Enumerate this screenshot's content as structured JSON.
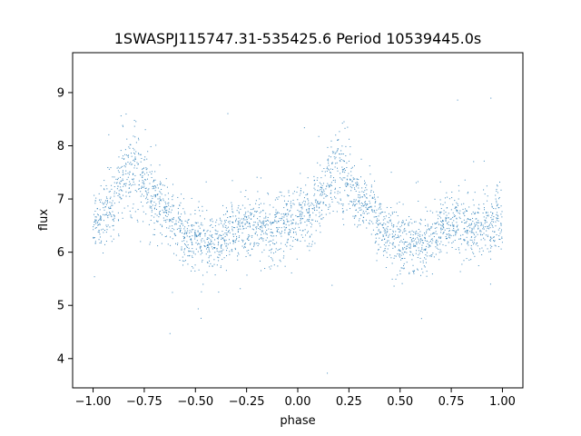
{
  "chart_data": {
    "type": "scatter",
    "title": "1SWASPJ115747.31-535425.6 Period 10539445.0s",
    "xlabel": "phase",
    "ylabel": "flux",
    "xlim": [
      -1.1,
      1.1
    ],
    "ylim": [
      3.45,
      9.75
    ],
    "x_ticks": [
      -1.0,
      -0.75,
      -0.5,
      -0.25,
      0.0,
      0.25,
      0.5,
      0.75,
      1.0
    ],
    "x_tick_labels": [
      "−1.00",
      "−0.75",
      "−0.50",
      "−0.25",
      "0.00",
      "0.25",
      "0.50",
      "0.75",
      "1.00"
    ],
    "y_ticks": [
      4,
      5,
      6,
      7,
      8,
      9
    ],
    "y_tick_labels": [
      "4",
      "5",
      "6",
      "7",
      "8",
      "9"
    ],
    "grid": false,
    "marker_color": "#1f77b4",
    "series": [
      {
        "x": [
          -1.0,
          -0.95,
          -0.9,
          -0.85,
          -0.8,
          -0.75,
          -0.7,
          -0.65,
          -0.6,
          -0.55,
          -0.5,
          -0.45,
          -0.4,
          -0.35,
          -0.3,
          -0.25,
          -0.2,
          -0.15,
          -0.1,
          -0.05,
          0.0,
          0.05,
          0.1,
          0.15,
          0.2,
          0.25,
          0.3,
          0.35,
          0.4,
          0.45,
          0.5,
          0.55,
          0.6,
          0.65,
          0.7,
          0.75,
          0.8,
          0.85,
          0.9,
          0.95,
          1.0
        ],
        "y": [
          6.6,
          6.7,
          6.9,
          7.4,
          7.6,
          7.3,
          7.0,
          6.8,
          6.5,
          6.3,
          6.2,
          6.2,
          6.1,
          6.3,
          6.4,
          6.5,
          6.5,
          6.4,
          6.5,
          6.6,
          6.6,
          6.7,
          6.9,
          7.4,
          7.6,
          7.3,
          7.0,
          6.8,
          6.5,
          6.3,
          6.2,
          6.2,
          6.1,
          6.3,
          6.4,
          6.5,
          6.5,
          6.4,
          6.5,
          6.6,
          6.6
        ],
        "spread": [
          0.45,
          0.45,
          0.45,
          0.5,
          0.55,
          0.5,
          0.45,
          0.4,
          0.4,
          0.4,
          0.4,
          0.4,
          0.4,
          0.4,
          0.4,
          0.4,
          0.4,
          0.4,
          0.45,
          0.45,
          0.45,
          0.45,
          0.45,
          0.5,
          0.55,
          0.5,
          0.45,
          0.4,
          0.4,
          0.4,
          0.4,
          0.4,
          0.4,
          0.4,
          0.4,
          0.4,
          0.4,
          0.4,
          0.45,
          0.45,
          0.45
        ]
      }
    ]
  }
}
